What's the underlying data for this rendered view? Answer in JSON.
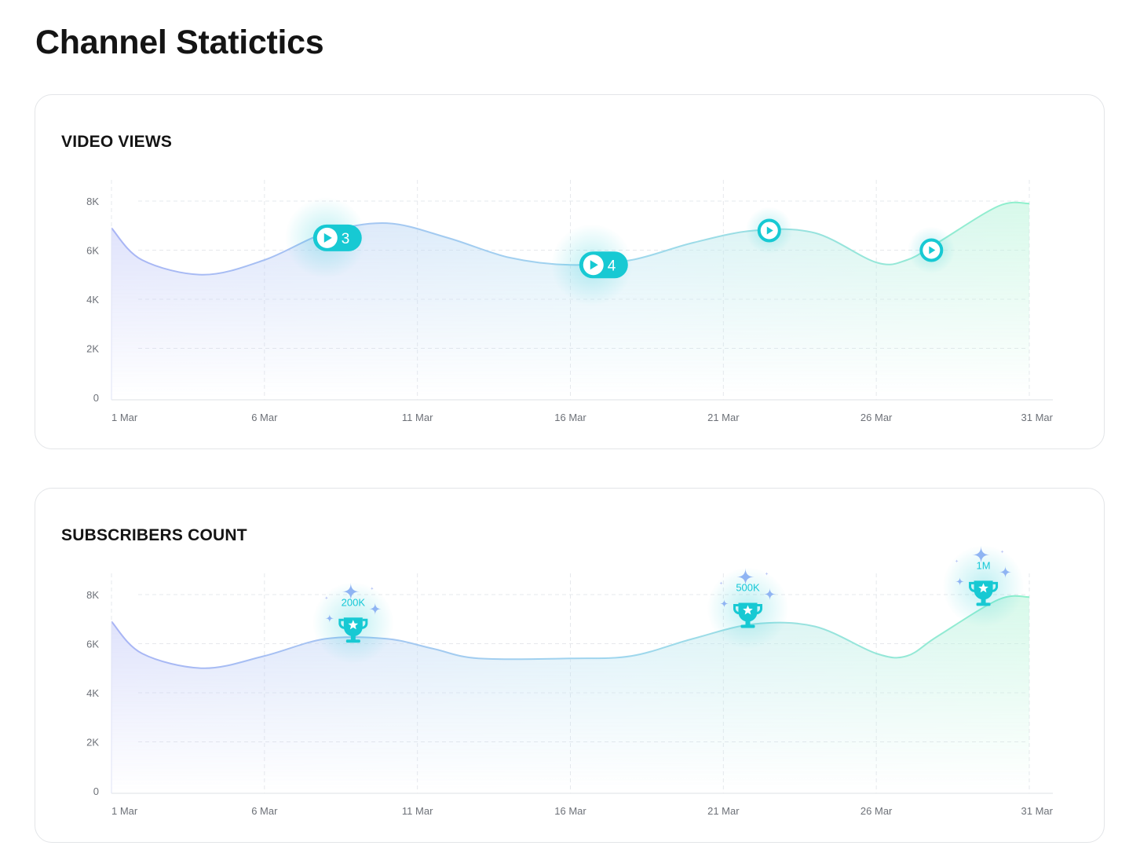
{
  "page": {
    "title": "Channel Statictics"
  },
  "colors": {
    "accent": "#17c9d3",
    "gradient_start": "#a9b5f5",
    "gradient_mid": "#9fd6ee",
    "gradient_end": "#8ff0cc",
    "grid": "#e6e8ec",
    "axis_text": "#6d7178"
  },
  "chart_data": [
    {
      "type": "area",
      "title": "VIDEO VIEWS",
      "x_tick_labels": [
        "1 Mar",
        "6 Mar",
        "11 Mar",
        "16 Mar",
        "21 Mar",
        "26 Mar",
        "31 Mar"
      ],
      "y_tick_labels": [
        "0",
        "2K",
        "4K",
        "6K",
        "8K"
      ],
      "ylim": [
        0,
        8000
      ],
      "xlim": [
        1,
        31
      ],
      "grid": true,
      "series": [
        {
          "x": [
            1,
            2,
            4,
            6,
            8,
            10,
            12,
            14,
            16,
            18,
            20,
            22,
            24,
            26,
            27,
            28,
            30,
            31
          ],
          "values": [
            6900,
            5600,
            5000,
            5600,
            6700,
            7100,
            6500,
            5700,
            5400,
            5600,
            6300,
            6800,
            6700,
            5500,
            5600,
            6300,
            7800,
            7900
          ]
        }
      ],
      "markers": [
        {
          "icon": "play-icon",
          "x": 8,
          "value": 6500,
          "label": "3"
        },
        {
          "icon": "play-icon",
          "x": 16.7,
          "value": 5400,
          "label": "4"
        },
        {
          "icon": "play-icon",
          "x": 22.5,
          "value": 6800,
          "label": ""
        },
        {
          "icon": "play-icon",
          "x": 27.8,
          "value": 6000,
          "label": ""
        }
      ]
    },
    {
      "type": "area",
      "title": "SUBSCRIBERS COUNT",
      "x_tick_labels": [
        "1 Mar",
        "6 Mar",
        "11 Mar",
        "16 Mar",
        "21 Mar",
        "26 Mar",
        "31 Mar"
      ],
      "y_tick_labels": [
        "0",
        "2K",
        "4K",
        "6K",
        "8K"
      ],
      "ylim": [
        0,
        8000
      ],
      "xlim": [
        1,
        31
      ],
      "grid": true,
      "series": [
        {
          "x": [
            1,
            2,
            4,
            6,
            8,
            10,
            11.5,
            13,
            16,
            18,
            20,
            22,
            24,
            26,
            27,
            28,
            30,
            31
          ],
          "values": [
            6900,
            5600,
            5000,
            5500,
            6200,
            6200,
            5800,
            5400,
            5400,
            5500,
            6200,
            6800,
            6700,
            5600,
            5500,
            6300,
            7800,
            7900
          ]
        }
      ],
      "markers": [
        {
          "icon": "trophy-icon",
          "x": 8.9,
          "value": 6200,
          "label": "200K"
        },
        {
          "icon": "trophy-icon",
          "x": 21.8,
          "value": 6800,
          "label": "500K"
        },
        {
          "icon": "trophy-icon",
          "x": 29.5,
          "value": 7700,
          "label": "1M"
        }
      ]
    }
  ]
}
